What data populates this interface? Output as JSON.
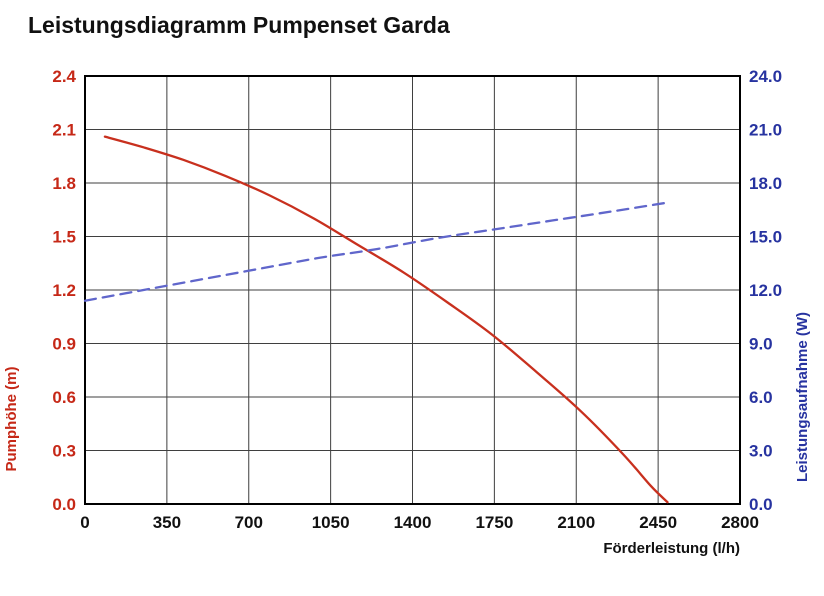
{
  "title": "Leistungsdiagramm Pumpenset Garda",
  "chart_data": {
    "type": "line",
    "title": "Leistungsdiagramm Pumpenset Garda",
    "xlabel": "Förderleistung (l/h)",
    "ylabel_left": "Pumphöhe (m)",
    "ylabel_right": "Leistungsaufnahme (W)",
    "xlim": [
      0,
      2800
    ],
    "ylim_left": [
      0,
      2.4
    ],
    "ylim_right": [
      0,
      24
    ],
    "x_tick_labels": [
      "0",
      "350",
      "700",
      "1050",
      "1400",
      "1750",
      "2100",
      "2450",
      "2800"
    ],
    "y_tick_labels_left": [
      "0.0",
      "0.3",
      "0.6",
      "0.9",
      "1.2",
      "1.5",
      "1.8",
      "2.1",
      "2.4"
    ],
    "y_tick_labels_right": [
      "0.0",
      "3.0",
      "6.0",
      "9.0",
      "12.0",
      "15.0",
      "18.0",
      "21.0",
      "24.0"
    ],
    "grid": true,
    "legend": "none",
    "colors": {
      "left_axis": "#c62817",
      "right_axis": "#2733a0",
      "pump_curve": "#c8301e",
      "power_line": "#6066cb",
      "grid": "#3f3f3f",
      "border": "#000000",
      "x_ticks": "#111111"
    },
    "series": [
      {
        "name": "Pumphöhe (m)",
        "axis": "left",
        "style": "solid",
        "x": [
          85,
          250,
          420,
          600,
          790,
          980,
          1170,
          1360,
          1550,
          1740,
          1930,
          2120,
          2300,
          2420,
          2490
        ],
        "y": [
          2.06,
          2.0,
          1.93,
          1.84,
          1.73,
          1.6,
          1.45,
          1.3,
          1.13,
          0.95,
          0.74,
          0.52,
          0.28,
          0.1,
          0.01
        ]
      },
      {
        "name": "Leistungsaufnahme (W)",
        "axis": "right",
        "style": "dashed",
        "x": [
          0,
          250,
          500,
          750,
          1000,
          1250,
          1500,
          1750,
          2000,
          2250,
          2490
        ],
        "y": [
          11.4,
          12.0,
          12.6,
          13.2,
          13.8,
          14.3,
          14.9,
          15.4,
          15.9,
          16.4,
          16.9
        ]
      }
    ]
  }
}
